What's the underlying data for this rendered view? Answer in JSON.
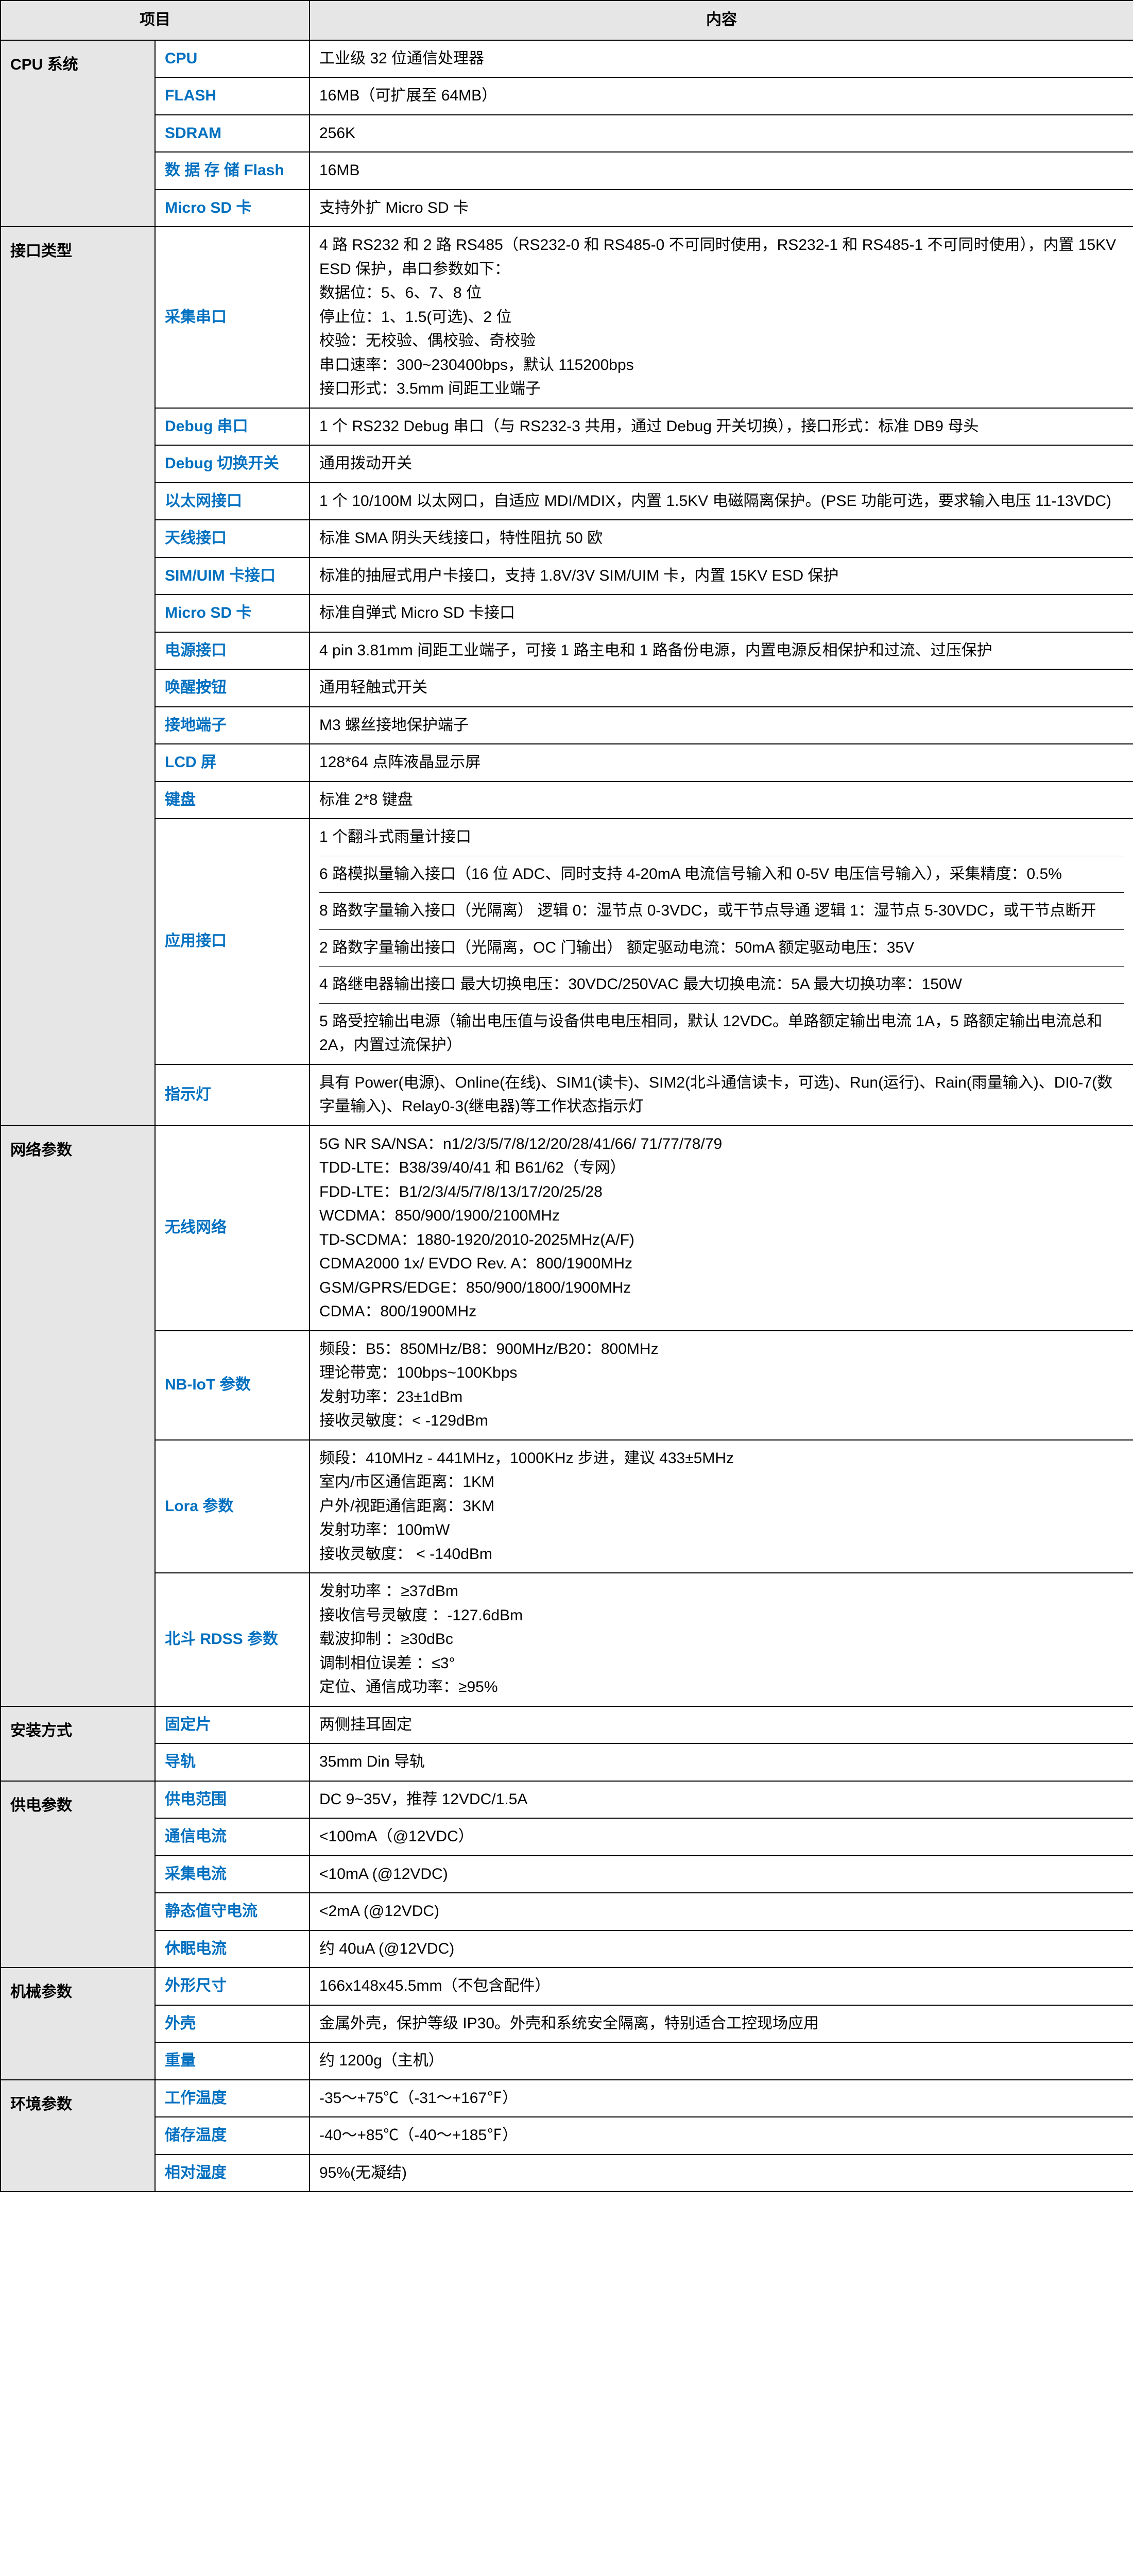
{
  "header": {
    "project": "项目",
    "content": "内容"
  },
  "cpu_system": {
    "title": "CPU 系统",
    "rows": {
      "cpu": {
        "label": "CPU",
        "content": "工业级 32 位通信处理器"
      },
      "flash": {
        "label": "FLASH",
        "content": "16MB（可扩展至 64MB）"
      },
      "sdram": {
        "label": "SDRAM",
        "content": "256K"
      },
      "dflash": {
        "label": "数 据 存 储 Flash",
        "content": "16MB"
      },
      "msd": {
        "label": "Micro SD 卡",
        "content": "支持外扩 Micro SD 卡"
      }
    }
  },
  "interface": {
    "title": "接口类型",
    "rows": {
      "serial": {
        "label": "采集串口",
        "content": "4 路 RS232 和 2 路 RS485（RS232-0 和 RS485-0 不可同时使用，RS232-1 和 RS485-1 不可同时使用），内置 15KV ESD 保护，串口参数如下：\n数据位：5、6、7、8 位\n停止位：1、1.5(可选)、2 位\n校验：无校验、偶校验、奇校验\n串口速率：300~230400bps，默认 115200bps\n接口形式：3.5mm 间距工业端子"
      },
      "debug": {
        "label": "Debug 串口",
        "content": "1 个 RS232 Debug 串口（与 RS232-3 共用，通过 Debug 开关切换），接口形式：标准 DB9 母头"
      },
      "debugsw": {
        "label": "Debug 切换开关",
        "content": "通用拨动开关"
      },
      "eth": {
        "label": "以太网接口",
        "content": "1 个 10/100M 以太网口，自适应 MDI/MDIX，内置 1.5KV 电磁隔离保护。(PSE 功能可选，要求输入电压 11-13VDC)"
      },
      "antenna": {
        "label": "天线接口",
        "content": "标准 SMA 阴头天线接口，特性阻抗 50 欧"
      },
      "sim": {
        "label": "SIM/UIM 卡接口",
        "content": "标准的抽屉式用户卡接口，支持 1.8V/3V SIM/UIM 卡，内置 15KV ESD 保护"
      },
      "msd": {
        "label": "Micro SD 卡",
        "content": "标准自弹式 Micro SD 卡接口"
      },
      "power": {
        "label": "电源接口",
        "content": "4 pin 3.81mm 间距工业端子，可接 1 路主电和 1 路备份电源，内置电源反相保护和过流、过压保护"
      },
      "wake": {
        "label": "唤醒按钮",
        "content": "通用轻触式开关"
      },
      "ground": {
        "label": "接地端子",
        "content": "M3 螺丝接地保护端子"
      },
      "lcd": {
        "label": "LCD 屏",
        "content": "128*64 点阵液晶显示屏"
      },
      "keyboard": {
        "label": "键盘",
        "content": "标准 2*8 键盘"
      },
      "app": {
        "label": "应用接口",
        "blocks": {
          "b1": "1 个翻斗式雨量计接口",
          "b2": "6 路模拟量输入接口（16 位 ADC、同时支持 4-20mA 电流信号输入和  0-5V 电压信号输入），采集精度：0.5%",
          "b3": "8 路数字量输入接口（光隔离）\n逻辑 0：湿节点 0-3VDC，或干节点导通\n逻辑 1：湿节点 5-30VDC，或干节点断开",
          "b4": "2 路数字量输出接口（光隔离，OC 门输出）\n额定驱动电流：50mA\n额定驱动电压：35V",
          "b5": "4 路继电器输出接口\n最大切换电压：30VDC/250VAC\n最大切换电流：5A\n最大切换功率：150W",
          "b6": "5 路受控输出电源（输出电压值与设备供电电压相同，默认 12VDC。单路额定输出电流 1A，5 路额定输出电流总和 2A，内置过流保护）"
        }
      },
      "led": {
        "label": "指示灯",
        "content": "具有 Power(电源)、Online(在线)、SIM1(读卡)、SIM2(北斗通信读卡，可选)、Run(运行)、Rain(雨量输入)、DI0-7(数字量输入)、Relay0-3(继电器)等工作状态指示灯"
      }
    }
  },
  "network": {
    "title": "网络参数",
    "rows": {
      "wireless": {
        "label": "无线网络",
        "content": "5G NR SA/NSA：n1/2/3/5/7/8/12/20/28/41/66/ 71/77/78/79\nTDD-LTE：B38/39/40/41 和 B61/62（专网）\nFDD-LTE：B1/2/3/4/5/7/8/13/17/20/25/28\nWCDMA：850/900/1900/2100MHz\nTD-SCDMA：1880-1920/2010-2025MHz(A/F)\nCDMA2000 1x/ EVDO Rev. A：800/1900MHz\nGSM/GPRS/EDGE：850/900/1800/1900MHz\nCDMA：800/1900MHz"
      },
      "nbiot": {
        "label": "NB-IoT 参数",
        "content": "频段：B5：850MHz/B8：900MHz/B20：800MHz\n理论带宽：100bps~100Kbps\n发射功率：23±1dBm\n接收灵敏度：< -129dBm"
      },
      "lora": {
        "label": "Lora 参数",
        "content": "频段：410MHz - 441MHz，1000KHz  步进，建议 433±5MHz\n室内/市区通信距离：1KM\n户外/视距通信距离：3KM\n发射功率：100mW\n接收灵敏度： < -140dBm"
      },
      "bd": {
        "label": "北斗 RDSS 参数",
        "content": "发射功率 ：≥37dBm\n接收信号灵敏度 ：-127.6dBm\n载波抑制 ：≥30dBc\n调制相位误差 ：≤3°\n定位、通信成功率：≥95%"
      }
    }
  },
  "install": {
    "title": "安装方式",
    "rows": {
      "bracket": {
        "label": "固定片",
        "content": "两侧挂耳固定"
      },
      "rail": {
        "label": "导轨",
        "content": "35mm Din 导轨"
      }
    }
  },
  "power": {
    "title": "供电参数",
    "rows": {
      "range": {
        "label": "供电范围",
        "content": "DC 9~35V，推荐 12VDC/1.5A"
      },
      "comm": {
        "label": "通信电流",
        "content": "<100mA（@12VDC）"
      },
      "collect": {
        "label": "采集电流",
        "content": "<10mA (@12VDC)"
      },
      "standby": {
        "label": "静态值守电流",
        "content": "<2mA (@12VDC)"
      },
      "sleep": {
        "label": "休眠电流",
        "content": "约 40uA (@12VDC)"
      }
    }
  },
  "mech": {
    "title": "机械参数",
    "rows": {
      "size": {
        "label": "外形尺寸",
        "content": "166x148x45.5mm（不包含配件）"
      },
      "shell": {
        "label": "外壳",
        "content": "金属外壳，保护等级 IP30。外壳和系统安全隔离，特别适合工控现场应用"
      },
      "weight": {
        "label": "重量",
        "content": "约 1200g（主机）"
      }
    }
  },
  "env": {
    "title": "环境参数",
    "rows": {
      "work": {
        "label": "工作温度",
        "content": "-35～+75℃（-31～+167℉）"
      },
      "store": {
        "label": "储存温度",
        "content": "-40～+85℃（-40～+185℉）"
      },
      "humid": {
        "label": "相对湿度",
        "content": "95%(无凝结)"
      }
    }
  },
  "colors": {
    "header_bg": "#e6e6e6",
    "border": "#000000",
    "label_text": "#0070c0",
    "content_text": "#000000"
  }
}
